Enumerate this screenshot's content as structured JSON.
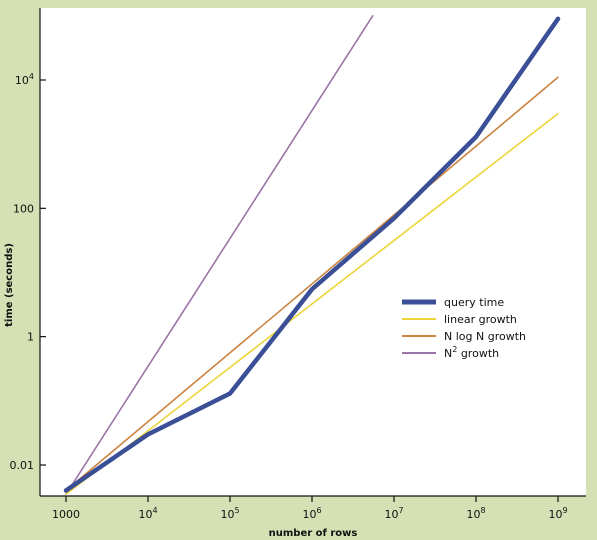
{
  "chart_data": {
    "type": "line",
    "xlabel": "number of rows",
    "ylabel": "time (seconds)",
    "x_scale": "log",
    "y_scale": "log",
    "xlim": [
      1000,
      1000000000
    ],
    "ylim": [
      0.003,
      100000
    ],
    "x_ticks": [
      {
        "value": 1000,
        "label": "1000",
        "sup": ""
      },
      {
        "value": 10000,
        "label": "10",
        "sup": "4"
      },
      {
        "value": 100000,
        "label": "10",
        "sup": "5"
      },
      {
        "value": 1000000,
        "label": "10",
        "sup": "6"
      },
      {
        "value": 10000000,
        "label": "10",
        "sup": "7"
      },
      {
        "value": 100000000,
        "label": "10",
        "sup": "8"
      },
      {
        "value": 1000000000,
        "label": "10",
        "sup": "9"
      }
    ],
    "y_ticks": [
      {
        "value": 0.01,
        "label": "0.01",
        "sup": ""
      },
      {
        "value": 1,
        "label": "1",
        "sup": ""
      },
      {
        "value": 100,
        "label": "100",
        "sup": ""
      },
      {
        "value": 10000,
        "label": "10",
        "sup": "4"
      }
    ],
    "grid": false,
    "legend_position": "center-right",
    "series": [
      {
        "name": "query time",
        "color": "#3a4f96",
        "width": 4.5,
        "x": [
          1000,
          10000,
          100000,
          1000000,
          10000000,
          100000000,
          1000000000
        ],
        "y": [
          0.004,
          0.03,
          0.13,
          5.5,
          70,
          1300,
          90000
        ]
      },
      {
        "name": "linear growth",
        "color": "#ecd53a",
        "width": 1.6,
        "x": [
          1000,
          1000000000
        ],
        "y": [
          0.0035,
          3000
        ]
      },
      {
        "name": "N log N growth",
        "color": "#cc8340",
        "width": 1.6,
        "x": [
          1000,
          1000000000
        ],
        "y": [
          0.004,
          11000
        ]
      },
      {
        "name": "N",
        "name_sup": "2",
        "name_suffix": " growth",
        "color": "#9b74a7",
        "width": 1.6,
        "x": [
          1000,
          5500000
        ],
        "y": [
          0.0035,
          100000
        ]
      }
    ]
  }
}
